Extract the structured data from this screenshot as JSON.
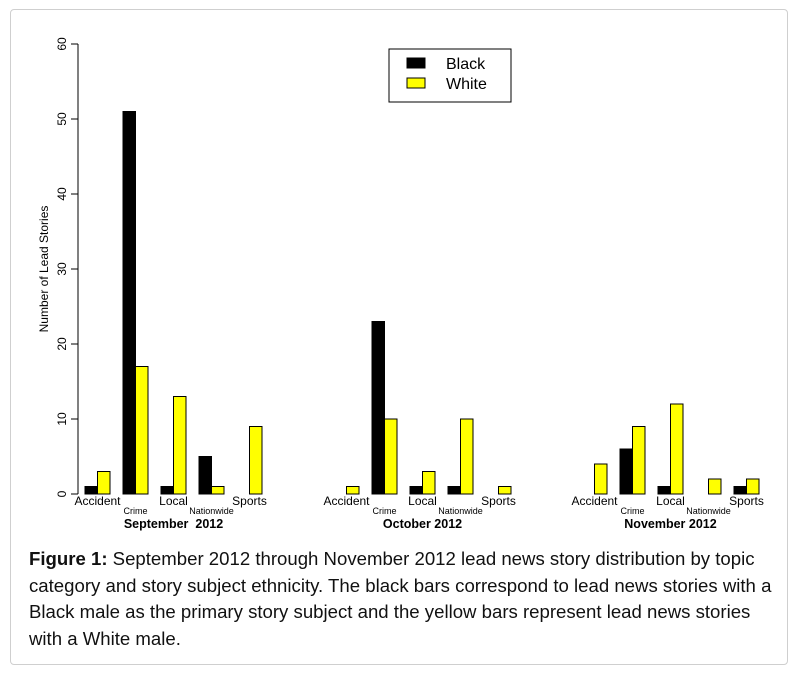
{
  "chart_data": {
    "type": "bar",
    "ylabel": "Number of Lead Stories",
    "ylim": [
      0,
      60
    ],
    "yticks": [
      "0",
      "10",
      "20",
      "30",
      "40",
      "50",
      "60"
    ],
    "categories": [
      "Accident",
      "Crime",
      "Local",
      "Nationwide",
      "Sports"
    ],
    "groups": [
      "September  2012",
      "October 2012",
      "November 2012"
    ],
    "series": [
      {
        "name": "Black",
        "color": "#000000",
        "values": [
          [
            1,
            51,
            1,
            5,
            0
          ],
          [
            0,
            23,
            1,
            1,
            0
          ],
          [
            0,
            6,
            1,
            0,
            1
          ]
        ]
      },
      {
        "name": "White",
        "color": "#ffff00",
        "values": [
          [
            3,
            17,
            13,
            1,
            9
          ],
          [
            1,
            10,
            3,
            10,
            1
          ],
          [
            4,
            9,
            12,
            2,
            2
          ]
        ]
      }
    ],
    "legend": {
      "position": "top-center"
    }
  },
  "caption": {
    "label": "Figure 1:",
    "text": " September 2012 through November 2012 lead news story distribution by topic category and story subject ethnicity. The black bars correspond to lead news stories with a Black male as the primary story subject and the yellow bars represent lead news stories with a White male."
  }
}
